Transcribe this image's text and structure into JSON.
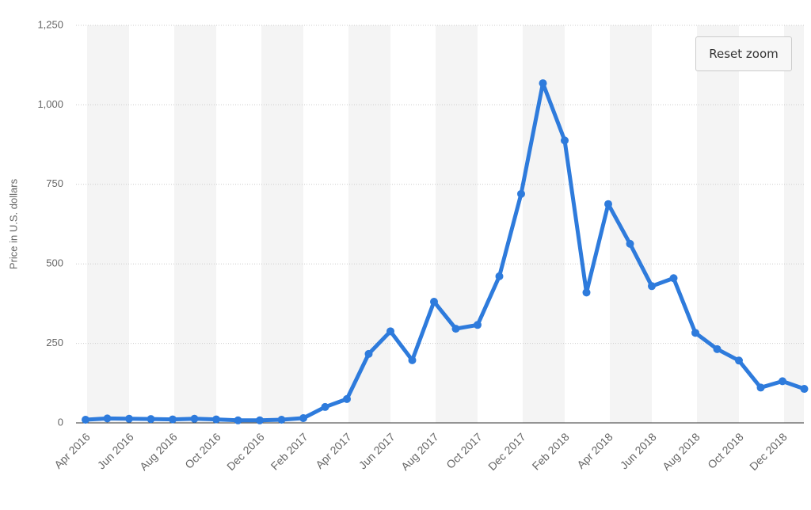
{
  "chart_data": {
    "type": "line",
    "y_axis_label": "Price in U.S. dollars",
    "categories": [
      "Apr 2016",
      null,
      "Jun 2016",
      null,
      "Aug 2016",
      null,
      "Oct 2016",
      null,
      "Dec 2016",
      null,
      "Feb 2017",
      null,
      "Apr 2017",
      null,
      "Jun 2017",
      null,
      "Aug 2017",
      null,
      "Oct 2017",
      null,
      "Dec 2017",
      null,
      "Feb 2018",
      null,
      "Apr 2018",
      null,
      "Jun 2018",
      null,
      "Aug 2018",
      null,
      "Oct 2018",
      null,
      "Dec 2018",
      null
    ],
    "values": [
      10,
      14,
      13,
      12,
      11,
      13,
      11,
      8,
      8,
      10,
      15,
      50,
      75,
      217,
      288,
      197,
      381,
      296,
      308,
      461,
      720,
      1068,
      888,
      410,
      688,
      563,
      430,
      455,
      283,
      232,
      196,
      111,
      131,
      107
    ],
    "color": "#2e7bdc",
    "ylim": [
      0,
      1250
    ],
    "yticks": [
      0,
      250,
      500,
      750,
      {
        "value": 1000,
        "label": "1,000"
      },
      {
        "value": 1250,
        "label": "1,250"
      }
    ],
    "grid": true,
    "alternating_bands": true
  },
  "controls": {
    "reset_zoom": "Reset zoom"
  }
}
